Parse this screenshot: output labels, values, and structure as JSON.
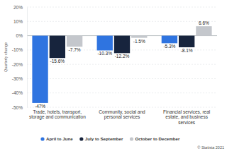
{
  "chart_data": {
    "type": "bar",
    "categories": [
      "Trade, hotels, transport, storage and communication",
      "Community, social and personal services",
      "Financial services, real estate, and business services"
    ],
    "series": [
      {
        "name": "April to June",
        "color": "#2f74e0",
        "values": [
          -47,
          -10.3,
          -5.3
        ],
        "value_labels": [
          "-47%",
          "-10.3%",
          "-5.3%"
        ]
      },
      {
        "name": "July to September",
        "color": "#17243d",
        "values": [
          -15.6,
          -12.2,
          -8.1
        ],
        "value_labels": [
          "-15.6%",
          "-12.2%",
          "-8.1%"
        ]
      },
      {
        "name": "October to December",
        "color": "#c4c7cc",
        "values": [
          -7.7,
          -1.5,
          6.6
        ],
        "value_labels": [
          "-7.7%",
          "-1.5%",
          "6.6%"
        ]
      }
    ],
    "y_label": "Quarterly change",
    "credit": "© Statista 2021",
    "ylim": [
      -50,
      20
    ],
    "yticks": [
      {
        "value": -50,
        "label": "-50%"
      },
      {
        "value": -40,
        "label": "-40%"
      },
      {
        "value": -30,
        "label": "-30%"
      },
      {
        "value": -20,
        "label": "-20%"
      },
      {
        "value": -10,
        "label": "-10%"
      },
      {
        "value": 0,
        "label": "0%"
      },
      {
        "value": 10,
        "label": "10%"
      },
      {
        "value": 20,
        "label": "20%"
      }
    ],
    "grid": true,
    "data_labels": true,
    "legend": "bottom"
  }
}
